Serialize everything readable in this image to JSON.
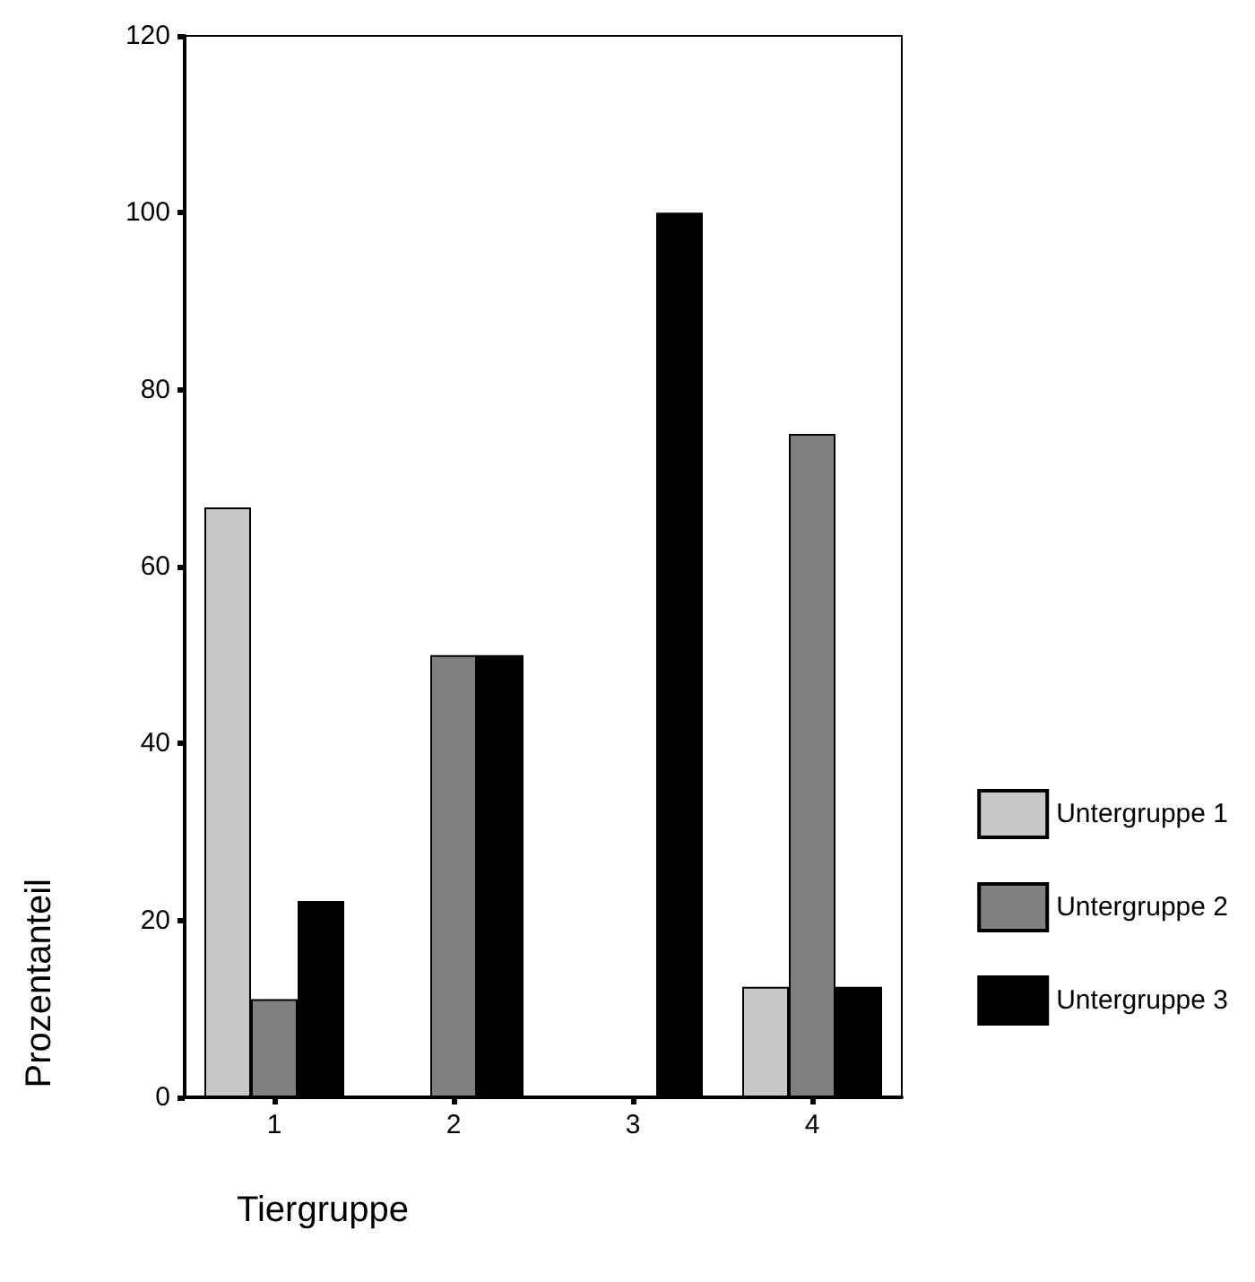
{
  "chart_data": {
    "type": "bar",
    "xlabel": "Tiergruppe",
    "ylabel": "Prozentanteil",
    "categories": [
      "1",
      "2",
      "3",
      "4"
    ],
    "series": [
      {
        "name": "Untergruppe 1",
        "color": "#c8c8c8",
        "values": [
          66.7,
          0,
          0,
          12.5
        ]
      },
      {
        "name": "Untergruppe 2",
        "color": "#808080",
        "values": [
          11.1,
          50,
          0,
          75
        ]
      },
      {
        "name": "Untergruppe 3",
        "color": "#000000",
        "values": [
          22.2,
          50,
          100,
          12.5
        ]
      }
    ],
    "ylim": [
      0,
      120
    ],
    "yticks": [
      0,
      20,
      40,
      60,
      80,
      100,
      120
    ],
    "grid": false,
    "legend": "right"
  }
}
